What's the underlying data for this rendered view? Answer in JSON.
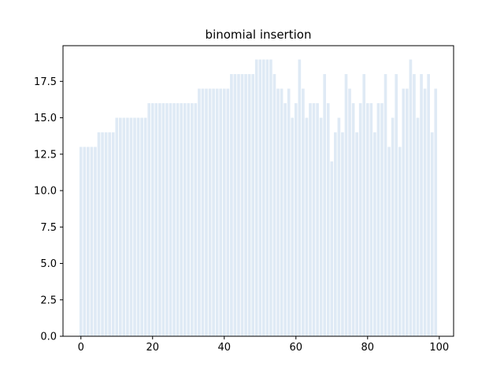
{
  "chart_data": {
    "type": "bar",
    "title": "binomial insertion",
    "xlabel": "",
    "ylabel": "",
    "bar_color": "#dfeaf5",
    "xlim": [
      -5,
      104
    ],
    "ylim": [
      0,
      19.95
    ],
    "xticks": [
      0,
      20,
      40,
      60,
      80,
      100
    ],
    "xtick_labels": [
      "0",
      "20",
      "40",
      "60",
      "80",
      "100"
    ],
    "yticks": [
      0,
      2.5,
      5,
      7.5,
      10,
      12.5,
      15,
      17.5
    ],
    "ytick_labels": [
      "0.0",
      "2.5",
      "5.0",
      "7.5",
      "10.0",
      "12.5",
      "15.0",
      "17.5"
    ],
    "grid": false,
    "x": [
      0,
      1,
      2,
      3,
      4,
      5,
      6,
      7,
      8,
      9,
      10,
      11,
      12,
      13,
      14,
      15,
      16,
      17,
      18,
      19,
      20,
      21,
      22,
      23,
      24,
      25,
      26,
      27,
      28,
      29,
      30,
      31,
      32,
      33,
      34,
      35,
      36,
      37,
      38,
      39,
      40,
      41,
      42,
      43,
      44,
      45,
      46,
      47,
      48,
      49,
      50,
      51,
      52,
      53,
      54,
      55,
      56,
      57,
      58,
      59,
      60,
      61,
      62,
      63,
      64,
      65,
      66,
      67,
      68,
      69,
      70,
      71,
      72,
      73,
      74,
      75,
      76,
      77,
      78,
      79,
      80,
      81,
      82,
      83,
      84,
      85,
      86,
      87,
      88,
      89,
      90,
      91,
      92,
      93,
      94,
      95,
      96,
      97,
      98,
      99
    ],
    "values": [
      13,
      13,
      13,
      13,
      13,
      14,
      14,
      14,
      14,
      14,
      15,
      15,
      15,
      15,
      15,
      15,
      15,
      15,
      15,
      16,
      16,
      16,
      16,
      16,
      16,
      16,
      16,
      16,
      16,
      16,
      16,
      16,
      16,
      17,
      17,
      17,
      17,
      17,
      17,
      17,
      17,
      17,
      18,
      18,
      18,
      18,
      18,
      18,
      18,
      19,
      19,
      19,
      19,
      19,
      18,
      17,
      17,
      16,
      17,
      15,
      16,
      19,
      17,
      15,
      16,
      16,
      16,
      15,
      18,
      16,
      12,
      14,
      15,
      14,
      18,
      17,
      16,
      14,
      16,
      18,
      16,
      16,
      14,
      16,
      16,
      18,
      13,
      15,
      18,
      13,
      17,
      17,
      19,
      18,
      15,
      18,
      17,
      18,
      14,
      17
    ]
  }
}
